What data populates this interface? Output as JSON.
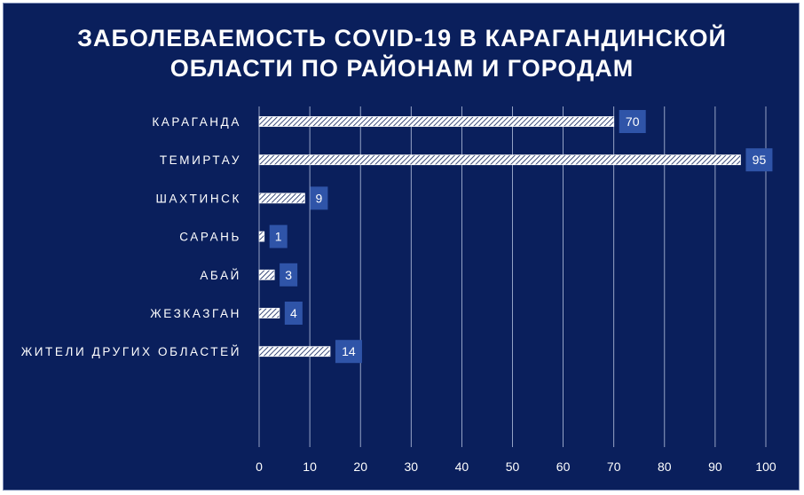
{
  "chart_data": {
    "type": "bar",
    "orientation": "horizontal",
    "title": "ЗАБОЛЕВАЕМОСТЬ COVID-19 В КАРАГАНДИНСКОЙ ОБЛАСТИ ПО РАЙОНАМ И ГОРОДАМ",
    "categories": [
      "КАРАГАНДА",
      "ТЕМИРТАУ",
      "ШАХТИНСК",
      "САРАНЬ",
      "АБАЙ",
      "ЖЕЗКАЗГАН",
      "ЖИТЕЛИ ДРУГИХ ОБЛАСТЕЙ"
    ],
    "values": [
      70,
      95,
      9,
      1,
      3,
      4,
      14
    ],
    "xlim": [
      0,
      100
    ],
    "ticks": [
      0,
      10,
      20,
      30,
      40,
      50,
      60,
      70,
      80,
      90,
      100
    ],
    "grid": "vertical",
    "legend": "none",
    "colors": {
      "background": "#0a1f5c",
      "bar_fill": "#ffffff",
      "bar_hatch": "#0a1f5c",
      "label_box": "#2f54a8",
      "grid": "#b8c4e0",
      "text": "#ffffff"
    }
  }
}
